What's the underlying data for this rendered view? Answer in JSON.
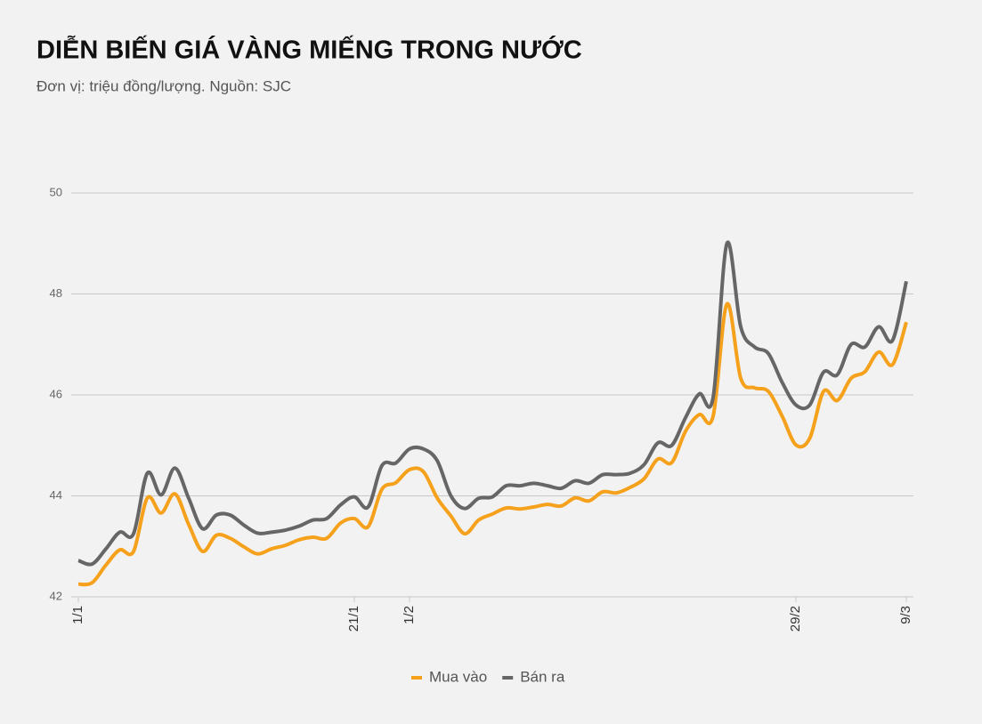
{
  "chart_data": {
    "type": "line",
    "title": "DIỄN BIẾN GIÁ VÀNG MIẾNG TRONG NƯỚC",
    "subtitle": "Đơn vị: triệu đồng/lượng. Nguồn: SJC",
    "categories": [
      "1/1",
      null,
      null,
      null,
      null,
      null,
      null,
      null,
      null,
      null,
      null,
      null,
      null,
      null,
      null,
      null,
      null,
      null,
      null,
      null,
      "21/1",
      null,
      null,
      null,
      "1/2",
      null,
      null,
      null,
      null,
      null,
      null,
      null,
      null,
      null,
      null,
      null,
      null,
      null,
      null,
      null,
      null,
      null,
      null,
      null,
      null,
      null,
      null,
      null,
      null,
      null,
      null,
      null,
      "29/2",
      null,
      null,
      null,
      null,
      null,
      null,
      null,
      "9/3"
    ],
    "series": [
      {
        "name": "Mua vào",
        "color": "#f5a11c",
        "values": [
          42.25,
          42.28,
          42.63,
          42.93,
          42.9,
          43.96,
          43.66,
          44.04,
          43.43,
          42.9,
          43.22,
          43.16,
          42.99,
          42.85,
          42.95,
          43.02,
          43.13,
          43.18,
          43.16,
          43.46,
          43.55,
          43.39,
          44.13,
          44.26,
          44.52,
          44.48,
          43.96,
          43.6,
          43.25,
          43.52,
          43.64,
          43.76,
          43.74,
          43.78,
          43.83,
          43.8,
          43.96,
          43.9,
          44.08,
          44.06,
          44.17,
          44.34,
          44.73,
          44.66,
          45.28,
          45.61,
          45.58,
          47.8,
          46.33,
          46.14,
          46.07,
          45.58,
          45.01,
          45.14,
          46.07,
          45.89,
          46.33,
          46.46,
          46.85,
          46.6,
          47.44
        ]
      },
      {
        "name": "Bán ra",
        "color": "#666666",
        "values": [
          42.72,
          42.65,
          42.95,
          43.28,
          43.25,
          44.45,
          44.02,
          44.55,
          43.95,
          43.35,
          43.62,
          43.62,
          43.42,
          43.26,
          43.28,
          43.32,
          43.4,
          43.52,
          43.55,
          43.82,
          43.98,
          43.78,
          44.6,
          44.65,
          44.93,
          44.93,
          44.7,
          44.0,
          43.75,
          43.95,
          43.98,
          44.2,
          44.2,
          44.25,
          44.2,
          44.15,
          44.3,
          44.25,
          44.42,
          44.42,
          44.45,
          44.62,
          45.05,
          45.0,
          45.55,
          46.02,
          45.95,
          49.0,
          47.35,
          46.95,
          46.82,
          46.25,
          45.8,
          45.8,
          46.45,
          46.4,
          47.0,
          46.95,
          47.35,
          47.08,
          48.25
        ]
      }
    ],
    "ylim": [
      42,
      50
    ],
    "yticks": [
      42,
      44,
      46,
      48,
      50
    ],
    "grid": true,
    "legend": "bottom"
  }
}
